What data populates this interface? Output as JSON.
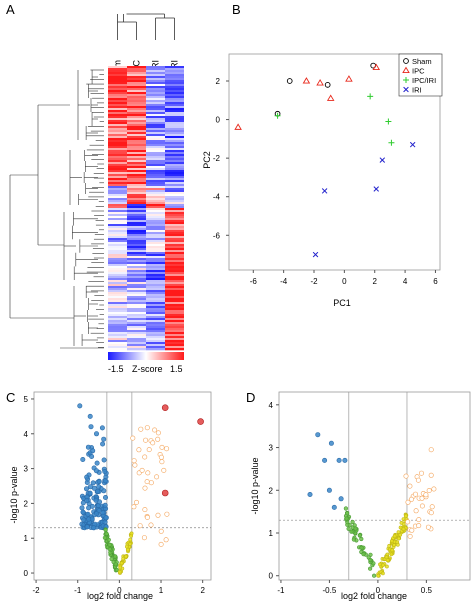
{
  "panel_labels": {
    "a": "A",
    "b": "B",
    "c": "C",
    "d": "D"
  },
  "colors": {
    "heat_red": "#ff1a1a",
    "heat_white": "#ffffff",
    "heat_blue": "#1a1aff",
    "sham": "#000000",
    "ipc": "#e8291c",
    "ipc_iri": "#2fcc2f",
    "iri": "#2222cc",
    "volcano_blue": "#3a86c8",
    "volcano_green": "#6cc04a",
    "volcano_yellow": "#e8e020",
    "volcano_orange": "#f4a45a",
    "volcano_red": "#e04040",
    "frame": "#9a9a9a"
  },
  "chart_data": [
    {
      "panel": "A",
      "type": "heatmap",
      "columns": [
        "Sham",
        "IPC",
        "IPC/IRI",
        "IRI"
      ],
      "colorbar": {
        "title": "Z-score",
        "min_label": "-1.5",
        "max_label": "1.5",
        "min": -1.5,
        "max": 1.5
      }
    },
    {
      "panel": "B",
      "type": "scatter",
      "xlabel": "PC1",
      "ylabel": "PC2",
      "xlim": [
        -7.6,
        6.3
      ],
      "ylim": [
        -7.8,
        3.4
      ],
      "xticks": [
        -6,
        -4,
        -2,
        0,
        2,
        4,
        6
      ],
      "yticks": [
        -6,
        -4,
        -2,
        0,
        2
      ],
      "legend_position": "top-right",
      "series": [
        {
          "name": "Sham",
          "marker": "circle",
          "points": [
            [
              -3.6,
              2.0
            ],
            [
              -1.1,
              1.8
            ],
            [
              1.9,
              2.8
            ],
            [
              -4.4,
              0.3
            ]
          ]
        },
        {
          "name": "IPC",
          "marker": "triangle",
          "points": [
            [
              -7.0,
              -0.4
            ],
            [
              -2.5,
              2.0
            ],
            [
              -1.6,
              1.9
            ],
            [
              -0.9,
              1.1
            ],
            [
              0.3,
              2.1
            ],
            [
              2.1,
              2.7
            ]
          ]
        },
        {
          "name": "IPC/IRI",
          "marker": "plus",
          "points": [
            [
              -4.4,
              0.2
            ],
            [
              1.7,
              1.2
            ],
            [
              2.9,
              -0.1
            ],
            [
              3.1,
              -1.2
            ]
          ]
        },
        {
          "name": "IRI",
          "marker": "x",
          "points": [
            [
              2.5,
              -2.1
            ],
            [
              4.5,
              -1.3
            ],
            [
              2.1,
              -3.6
            ],
            [
              -1.3,
              -3.7
            ],
            [
              -1.9,
              -7.0
            ]
          ]
        }
      ]
    },
    {
      "panel": "C",
      "type": "scatter",
      "xlabel": "log2 fold change",
      "ylabel": "-log10 p-value",
      "xlim": [
        -2.05,
        2.2
      ],
      "ylim": [
        -0.2,
        5.2
      ],
      "xticks": [
        -2,
        -1,
        0,
        1,
        2
      ],
      "yticks": [
        0,
        1,
        2,
        3,
        4,
        5
      ],
      "threshold_y": 1.3,
      "threshold_x": [
        -0.3,
        0.3
      ]
    },
    {
      "panel": "D",
      "type": "scatter",
      "xlabel": "log2 fold change",
      "ylabel": "-log10 p-value",
      "xlim": [
        -1.02,
        0.95
      ],
      "ylim": [
        -0.1,
        4.3
      ],
      "xticks": [
        -1,
        -0.5,
        0,
        0.5
      ],
      "yticks": [
        0,
        1,
        2,
        3,
        4
      ],
      "threshold_y": 1.3,
      "threshold_x": [
        -0.3,
        0.3
      ]
    }
  ]
}
